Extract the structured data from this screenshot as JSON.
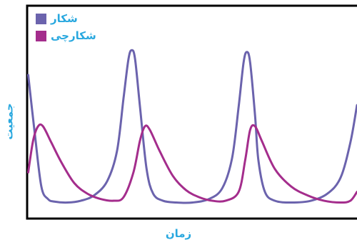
{
  "chart_data": {
    "type": "line",
    "title": "",
    "xlabel": "زمان",
    "ylabel": "جمعیت",
    "legend_position": "top-left",
    "grid": false,
    "axis_ticks": false,
    "series": [
      {
        "name": "شکار",
        "color": "#6b63ad",
        "points": [
          [
            0,
            0.73
          ],
          [
            0.02,
            0.4
          ],
          [
            0.04,
            0.1
          ],
          [
            0.06,
            0.03
          ],
          [
            0.08,
            0.015
          ],
          [
            0.12,
            0.01
          ],
          [
            0.16,
            0.02
          ],
          [
            0.2,
            0.05
          ],
          [
            0.24,
            0.13
          ],
          [
            0.27,
            0.3
          ],
          [
            0.29,
            0.6
          ],
          [
            0.305,
            0.82
          ],
          [
            0.315,
            0.87
          ],
          [
            0.325,
            0.82
          ],
          [
            0.34,
            0.55
          ],
          [
            0.36,
            0.2
          ],
          [
            0.38,
            0.06
          ],
          [
            0.41,
            0.02
          ],
          [
            0.45,
            0.01
          ],
          [
            0.5,
            0.01
          ],
          [
            0.55,
            0.03
          ],
          [
            0.59,
            0.09
          ],
          [
            0.62,
            0.26
          ],
          [
            0.64,
            0.55
          ],
          [
            0.655,
            0.8
          ],
          [
            0.665,
            0.86
          ],
          [
            0.675,
            0.8
          ],
          [
            0.69,
            0.5
          ],
          [
            0.7,
            0.25
          ],
          [
            0.72,
            0.07
          ],
          [
            0.75,
            0.02
          ],
          [
            0.8,
            0.01
          ],
          [
            0.86,
            0.02
          ],
          [
            0.91,
            0.06
          ],
          [
            0.95,
            0.15
          ],
          [
            0.98,
            0.35
          ],
          [
            1.0,
            0.56
          ]
        ]
      },
      {
        "name": "شکارچی",
        "color": "#a42d8c",
        "points": [
          [
            0,
            0.18
          ],
          [
            0.015,
            0.36
          ],
          [
            0.03,
            0.44
          ],
          [
            0.045,
            0.44
          ],
          [
            0.07,
            0.35
          ],
          [
            0.1,
            0.24
          ],
          [
            0.14,
            0.12
          ],
          [
            0.18,
            0.06
          ],
          [
            0.22,
            0.03
          ],
          [
            0.26,
            0.02
          ],
          [
            0.29,
            0.04
          ],
          [
            0.32,
            0.18
          ],
          [
            0.34,
            0.36
          ],
          [
            0.355,
            0.44
          ],
          [
            0.37,
            0.42
          ],
          [
            0.4,
            0.3
          ],
          [
            0.44,
            0.16
          ],
          [
            0.48,
            0.08
          ],
          [
            0.52,
            0.04
          ],
          [
            0.56,
            0.02
          ],
          [
            0.6,
            0.02
          ],
          [
            0.64,
            0.07
          ],
          [
            0.66,
            0.25
          ],
          [
            0.675,
            0.42
          ],
          [
            0.69,
            0.44
          ],
          [
            0.71,
            0.36
          ],
          [
            0.75,
            0.2
          ],
          [
            0.8,
            0.1
          ],
          [
            0.85,
            0.05
          ],
          [
            0.9,
            0.02
          ],
          [
            0.95,
            0.01
          ],
          [
            0.98,
            0.02
          ],
          [
            1.0,
            0.07
          ]
        ]
      }
    ]
  }
}
